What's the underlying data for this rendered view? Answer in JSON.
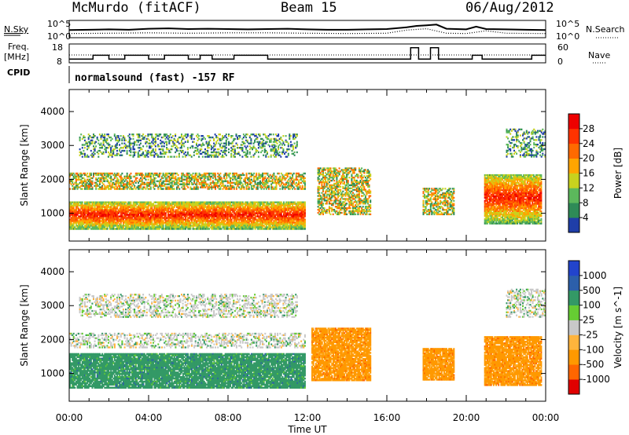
{
  "header": {
    "station": "McMurdo (fitACF)",
    "beam": "Beam 15",
    "date": "06/Aug/2012"
  },
  "left_labels": {
    "nsky": "N.Sky",
    "freq": "Freq.",
    "mhz": "[MHz]",
    "cpid": "CPID"
  },
  "right_labels": {
    "nsearch": "N.Search",
    "nave": "Nave"
  },
  "cpid_text": "normalsound (fast) -157 RF",
  "colors": {
    "power": [
      "#0000ff",
      "#1f3ea8",
      "#2e8b57",
      "#5cb85c",
      "#c8d21e",
      "#ffa500",
      "#ff6a00",
      "#ff3300",
      "#ee0000"
    ],
    "velocity": [
      "#e00000",
      "#ff6600",
      "#ff9900",
      "#ffb43c",
      "#c8c8c8",
      "#66cc33",
      "#339966",
      "#2c5faa",
      "#2244cc"
    ],
    "ground_scatter": "#bbbbbb",
    "frame": "#000000"
  },
  "chart_data": [
    {
      "type": "line",
      "name": "noise",
      "left_ticks": [
        "10^5",
        "10^0"
      ],
      "right_ticks": [
        "10^5",
        "10^0"
      ],
      "series": [
        {
          "name": "N.Sky",
          "style": "solid",
          "x": [
            0,
            1,
            2,
            3,
            4,
            5,
            6,
            7,
            8,
            9,
            10,
            11,
            12,
            13,
            14,
            15,
            16,
            17,
            17.5,
            18,
            18.5,
            19,
            20,
            20.5,
            21,
            22,
            23,
            24
          ],
          "y": [
            2.2,
            2.3,
            2.4,
            2.3,
            2.6,
            2.7,
            2.5,
            2.6,
            2.5,
            2.4,
            2.5,
            2.6,
            2.4,
            2.3,
            2.3,
            2.4,
            2.5,
            3.0,
            3.4,
            3.6,
            3.8,
            2.6,
            2.4,
            3.2,
            2.5,
            2.4,
            2.3,
            2.2
          ]
        },
        {
          "name": "N.Search",
          "style": "dotted",
          "x": [
            0,
            2,
            4,
            6,
            8,
            10,
            12,
            14,
            16,
            17,
            18,
            19,
            20,
            21,
            22,
            24
          ],
          "y": [
            1.2,
            1.3,
            1.4,
            1.3,
            1.4,
            1.4,
            1.3,
            1.2,
            1.3,
            2.2,
            2.6,
            1.3,
            1.2,
            2.0,
            1.3,
            1.2
          ]
        }
      ]
    },
    {
      "type": "line",
      "name": "frequency",
      "left_ticks": [
        "18",
        "8"
      ],
      "right_ticks": [
        "60",
        "0"
      ],
      "series": [
        {
          "name": "Freq.",
          "style": "solid",
          "x": [
            0,
            0.5,
            1.2,
            2.0,
            2.8,
            3.5,
            4.0,
            4.8,
            5.5,
            6.0,
            6.6,
            7.2,
            7.8,
            8.3,
            9.0,
            10.0,
            11.0,
            12.0,
            13.0,
            14.0,
            15.0,
            16.0,
            16.8,
            17.2,
            17.6,
            18.2,
            18.6,
            19.2,
            19.8,
            20.3,
            20.8,
            21.4,
            22.0,
            22.8,
            23.3,
            24.0
          ],
          "y": [
            10,
            10,
            12,
            10,
            12,
            12,
            10,
            12,
            12,
            10,
            12,
            10,
            10,
            12,
            12,
            10,
            10,
            10,
            10,
            10,
            10,
            10,
            10,
            16,
            10,
            16,
            10,
            10,
            10,
            12,
            10,
            10,
            10,
            10,
            12,
            12
          ]
        },
        {
          "name": "Nave",
          "style": "dotted",
          "x": [
            0,
            24
          ],
          "y": [
            25,
            25
          ]
        }
      ]
    },
    {
      "type": "heatmap",
      "name": "power",
      "title": "Beam 15",
      "xlabel": "Time UT",
      "ylabel": "Slant Range [km]",
      "colorbar_label": "Power [dB]",
      "colorbar_ticks": [
        "4",
        "8",
        "12",
        "16",
        "20",
        "24",
        "28"
      ],
      "x_ticks": [
        "00:00",
        "04:00",
        "08:00",
        "12:00",
        "16:00",
        "20:00",
        "00:00"
      ],
      "y_ticks": [
        "1000",
        "2000",
        "3000",
        "4000"
      ],
      "xlim": [
        0,
        24
      ],
      "ylim": [
        180,
        4650
      ],
      "regions": [
        {
          "t0": 0.0,
          "t1": 11.9,
          "r0": 520,
          "r1": 1350,
          "level": "strong"
        },
        {
          "t0": 0.0,
          "t1": 11.9,
          "r0": 1700,
          "r1": 2200,
          "level": "medium"
        },
        {
          "t0": 0.5,
          "t1": 11.5,
          "r0": 2650,
          "r1": 3350,
          "level": "weak"
        },
        {
          "t0": 12.5,
          "t1": 15.2,
          "r0": 950,
          "r1": 2350,
          "level": "medium"
        },
        {
          "t0": 17.8,
          "t1": 19.4,
          "r0": 950,
          "r1": 1750,
          "level": "medium"
        },
        {
          "t0": 20.9,
          "t1": 23.8,
          "r0": 680,
          "r1": 2150,
          "level": "strong"
        },
        {
          "t0": 22.0,
          "t1": 24.0,
          "r0": 2650,
          "r1": 3500,
          "level": "weak"
        }
      ]
    },
    {
      "type": "heatmap",
      "name": "velocity",
      "xlabel": "Time UT",
      "ylabel": "Slant Range [km]",
      "colorbar_label": "Velocity [m s^-1]",
      "colorbar_ticks": [
        "-1000",
        "-500",
        "-100",
        "-25",
        "25",
        "100",
        "500",
        "1000"
      ],
      "x_ticks": [
        "00:00",
        "04:00",
        "08:00",
        "12:00",
        "16:00",
        "20:00",
        "00:00"
      ],
      "y_ticks": [
        "1000",
        "2000",
        "3000",
        "4000"
      ],
      "xlim": [
        0,
        24
      ],
      "ylim": [
        180,
        4650
      ],
      "regions": [
        {
          "t0": 0.0,
          "t1": 11.9,
          "r0": 560,
          "r1": 1600,
          "sign": "positive"
        },
        {
          "t0": 0.0,
          "t1": 11.9,
          "r0": 1750,
          "r1": 2200,
          "sign": "mixed"
        },
        {
          "t0": 0.5,
          "t1": 11.5,
          "r0": 2650,
          "r1": 3350,
          "sign": "mixed"
        },
        {
          "t0": 12.2,
          "t1": 15.2,
          "r0": 780,
          "r1": 2350,
          "sign": "negative"
        },
        {
          "t0": 17.8,
          "t1": 19.4,
          "r0": 800,
          "r1": 1750,
          "sign": "negative"
        },
        {
          "t0": 20.9,
          "t1": 23.8,
          "r0": 640,
          "r1": 2100,
          "sign": "negative"
        },
        {
          "t0": 22.0,
          "t1": 24.0,
          "r0": 2650,
          "r1": 3500,
          "sign": "mixed"
        }
      ]
    }
  ]
}
